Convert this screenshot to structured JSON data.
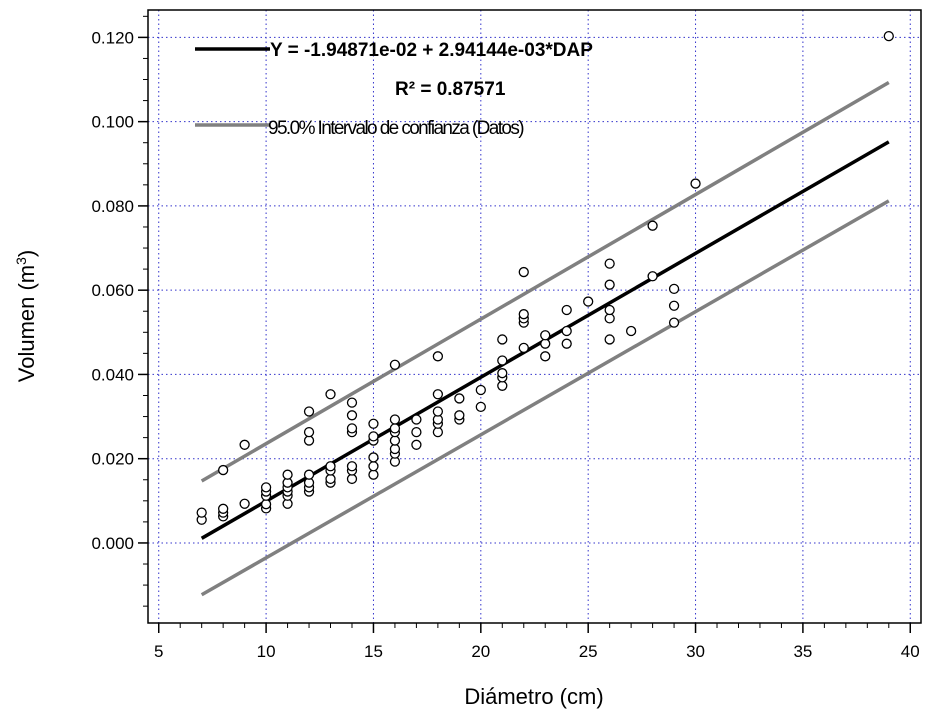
{
  "chart_data": {
    "type": "scatter",
    "xlabel": "Diámetro (cm)",
    "ylabel_main": "Volumen (m",
    "ylabel_sup": "3",
    "ylabel_end": ")",
    "xlim": [
      4.5,
      40.5
    ],
    "ylim": [
      -0.019,
      0.1265
    ],
    "x_ticks": [
      5,
      10,
      15,
      20,
      25,
      30,
      35,
      40
    ],
    "x_tick_labels": [
      "5",
      "10",
      "15",
      "20",
      "25",
      "30",
      "35",
      "40"
    ],
    "y_ticks": [
      0,
      0.02,
      0.04,
      0.06,
      0.08,
      0.1,
      0.12
    ],
    "y_tick_labels": [
      "0.000",
      "0.020",
      "0.040",
      "0.060",
      "0.080",
      "0.100",
      "0.120"
    ],
    "grid": true,
    "legend": [
      {
        "label": "Y = -1.94871e-02 + 2.94144e-03*DAP",
        "color": "#000000"
      },
      {
        "label": "R² = 0.87571"
      },
      {
        "label": "95.0% Intervalo de confianza (Datos)",
        "color": "#808080"
      }
    ],
    "fit_line": {
      "x": [
        7,
        39
      ],
      "y": [
        0.0011,
        0.0952
      ],
      "color": "#000000"
    },
    "upper_band": {
      "x": [
        7,
        39
      ],
      "y": [
        0.0147,
        0.1093
      ],
      "color": "#808080"
    },
    "lower_band": {
      "x": [
        7,
        39
      ],
      "y": [
        -0.0123,
        0.0812
      ],
      "color": "#808080"
    },
    "points": [
      [
        7,
        0.0055
      ],
      [
        7,
        0.0072
      ],
      [
        8,
        0.0063
      ],
      [
        8,
        0.0072
      ],
      [
        8,
        0.0081
      ],
      [
        8,
        0.0173
      ],
      [
        9,
        0.0093
      ],
      [
        9,
        0.0233
      ],
      [
        10,
        0.0082
      ],
      [
        10,
        0.0092
      ],
      [
        10,
        0.0112
      ],
      [
        10,
        0.0122
      ],
      [
        10,
        0.0132
      ],
      [
        11,
        0.0093
      ],
      [
        11,
        0.0112
      ],
      [
        11,
        0.0122
      ],
      [
        11,
        0.0132
      ],
      [
        11,
        0.0143
      ],
      [
        11,
        0.0162
      ],
      [
        12,
        0.0122
      ],
      [
        12,
        0.0132
      ],
      [
        12,
        0.0143
      ],
      [
        12,
        0.0162
      ],
      [
        12,
        0.0243
      ],
      [
        12,
        0.0263
      ],
      [
        12,
        0.0312
      ],
      [
        13,
        0.0143
      ],
      [
        13,
        0.0152
      ],
      [
        13,
        0.0172
      ],
      [
        13,
        0.0182
      ],
      [
        13,
        0.0353
      ],
      [
        14,
        0.0152
      ],
      [
        14,
        0.0172
      ],
      [
        14,
        0.0182
      ],
      [
        14,
        0.0263
      ],
      [
        14,
        0.0272
      ],
      [
        14,
        0.0303
      ],
      [
        14,
        0.0333
      ],
      [
        15,
        0.0162
      ],
      [
        15,
        0.0182
      ],
      [
        15,
        0.0203
      ],
      [
        15,
        0.0243
      ],
      [
        15,
        0.0253
      ],
      [
        15,
        0.0283
      ],
      [
        16,
        0.0193
      ],
      [
        16,
        0.0212
      ],
      [
        16,
        0.0223
      ],
      [
        16,
        0.0243
      ],
      [
        16,
        0.0263
      ],
      [
        16,
        0.0272
      ],
      [
        16,
        0.0293
      ],
      [
        16,
        0.0423
      ],
      [
        17,
        0.0233
      ],
      [
        17,
        0.0263
      ],
      [
        17,
        0.0293
      ],
      [
        18,
        0.0263
      ],
      [
        18,
        0.0283
      ],
      [
        18,
        0.0293
      ],
      [
        18,
        0.0312
      ],
      [
        18,
        0.0353
      ],
      [
        18,
        0.0443
      ],
      [
        19,
        0.0293
      ],
      [
        19,
        0.0303
      ],
      [
        19,
        0.0343
      ],
      [
        20,
        0.0323
      ],
      [
        20,
        0.0363
      ],
      [
        21,
        0.0373
      ],
      [
        21,
        0.0393
      ],
      [
        21,
        0.0403
      ],
      [
        21,
        0.0433
      ],
      [
        21,
        0.0483
      ],
      [
        22,
        0.0463
      ],
      [
        22,
        0.0523
      ],
      [
        22,
        0.0533
      ],
      [
        22,
        0.0543
      ],
      [
        22,
        0.0643
      ],
      [
        23,
        0.0443
      ],
      [
        23,
        0.0473
      ],
      [
        23,
        0.0493
      ],
      [
        24,
        0.0473
      ],
      [
        24,
        0.0503
      ],
      [
        24,
        0.0553
      ],
      [
        25,
        0.0573
      ],
      [
        26,
        0.0483
      ],
      [
        26,
        0.0533
      ],
      [
        26,
        0.0553
      ],
      [
        26,
        0.0613
      ],
      [
        26,
        0.0663
      ],
      [
        27,
        0.0503
      ],
      [
        28,
        0.0633
      ],
      [
        28,
        0.0753
      ],
      [
        29,
        0.0523
      ],
      [
        29,
        0.0563
      ],
      [
        29,
        0.0603
      ],
      [
        30,
        0.0853
      ],
      [
        39,
        0.1203
      ]
    ]
  }
}
